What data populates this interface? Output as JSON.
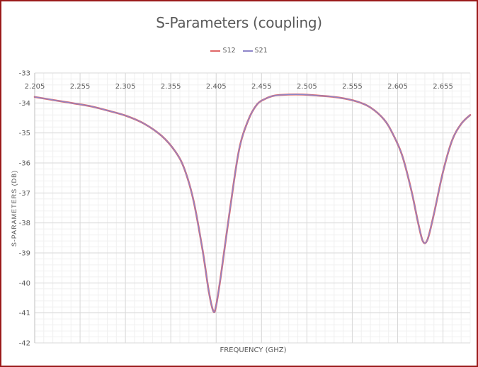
{
  "chart_data": {
    "type": "line",
    "title": "S-Parameters (coupling)",
    "xlabel": "FREQUENCY (GHZ)",
    "ylabel": "S-PARAMETERS (DB)",
    "xlim": [
      2.205,
      2.685
    ],
    "ylim": [
      -42,
      -33
    ],
    "x_ticks": [
      "2.205",
      "2.255",
      "2.305",
      "2.355",
      "2.405",
      "2.455",
      "2.505",
      "2.555",
      "2.605",
      "2.655"
    ],
    "y_ticks": [
      "-33",
      "-34",
      "-35",
      "-36",
      "-37",
      "-38",
      "-39",
      "-40",
      "-41",
      "-42"
    ],
    "grid": true,
    "legend_position": "top",
    "series": [
      {
        "name": "S12",
        "color": "#e06666",
        "x": [
          2.205,
          2.235,
          2.265,
          2.285,
          2.305,
          2.325,
          2.345,
          2.36,
          2.37,
          2.38,
          2.39,
          2.397,
          2.402,
          2.405,
          2.41,
          2.42,
          2.43,
          2.44,
          2.45,
          2.46,
          2.47,
          2.485,
          2.5,
          2.52,
          2.54,
          2.56,
          2.575,
          2.59,
          2.6,
          2.61,
          2.62,
          2.628,
          2.633,
          2.638,
          2.645,
          2.655,
          2.665,
          2.675,
          2.685
        ],
        "values": [
          -33.8,
          -33.95,
          -34.1,
          -34.25,
          -34.42,
          -34.68,
          -35.1,
          -35.62,
          -36.2,
          -37.25,
          -38.9,
          -40.3,
          -40.95,
          -40.75,
          -39.8,
          -37.6,
          -35.6,
          -34.6,
          -34.05,
          -33.85,
          -33.75,
          -33.72,
          -33.72,
          -33.76,
          -33.82,
          -33.95,
          -34.15,
          -34.55,
          -35.05,
          -35.75,
          -36.9,
          -38.05,
          -38.62,
          -38.55,
          -37.7,
          -36.3,
          -35.25,
          -34.7,
          -34.4
        ]
      },
      {
        "name": "S21",
        "color": "#8e86c9",
        "x": [
          2.205,
          2.235,
          2.265,
          2.285,
          2.305,
          2.325,
          2.345,
          2.36,
          2.37,
          2.38,
          2.39,
          2.397,
          2.402,
          2.405,
          2.41,
          2.42,
          2.43,
          2.44,
          2.45,
          2.46,
          2.47,
          2.485,
          2.5,
          2.52,
          2.54,
          2.56,
          2.575,
          2.59,
          2.6,
          2.61,
          2.62,
          2.628,
          2.633,
          2.638,
          2.645,
          2.655,
          2.665,
          2.675,
          2.685
        ],
        "values": [
          -33.8,
          -33.95,
          -34.1,
          -34.25,
          -34.42,
          -34.68,
          -35.1,
          -35.62,
          -36.2,
          -37.25,
          -38.9,
          -40.3,
          -40.95,
          -40.75,
          -39.8,
          -37.6,
          -35.6,
          -34.6,
          -34.05,
          -33.85,
          -33.75,
          -33.72,
          -33.72,
          -33.76,
          -33.82,
          -33.95,
          -34.15,
          -34.55,
          -35.05,
          -35.75,
          -36.9,
          -38.05,
          -38.62,
          -38.55,
          -37.7,
          -36.3,
          -35.25,
          -34.7,
          -34.4
        ]
      }
    ]
  }
}
